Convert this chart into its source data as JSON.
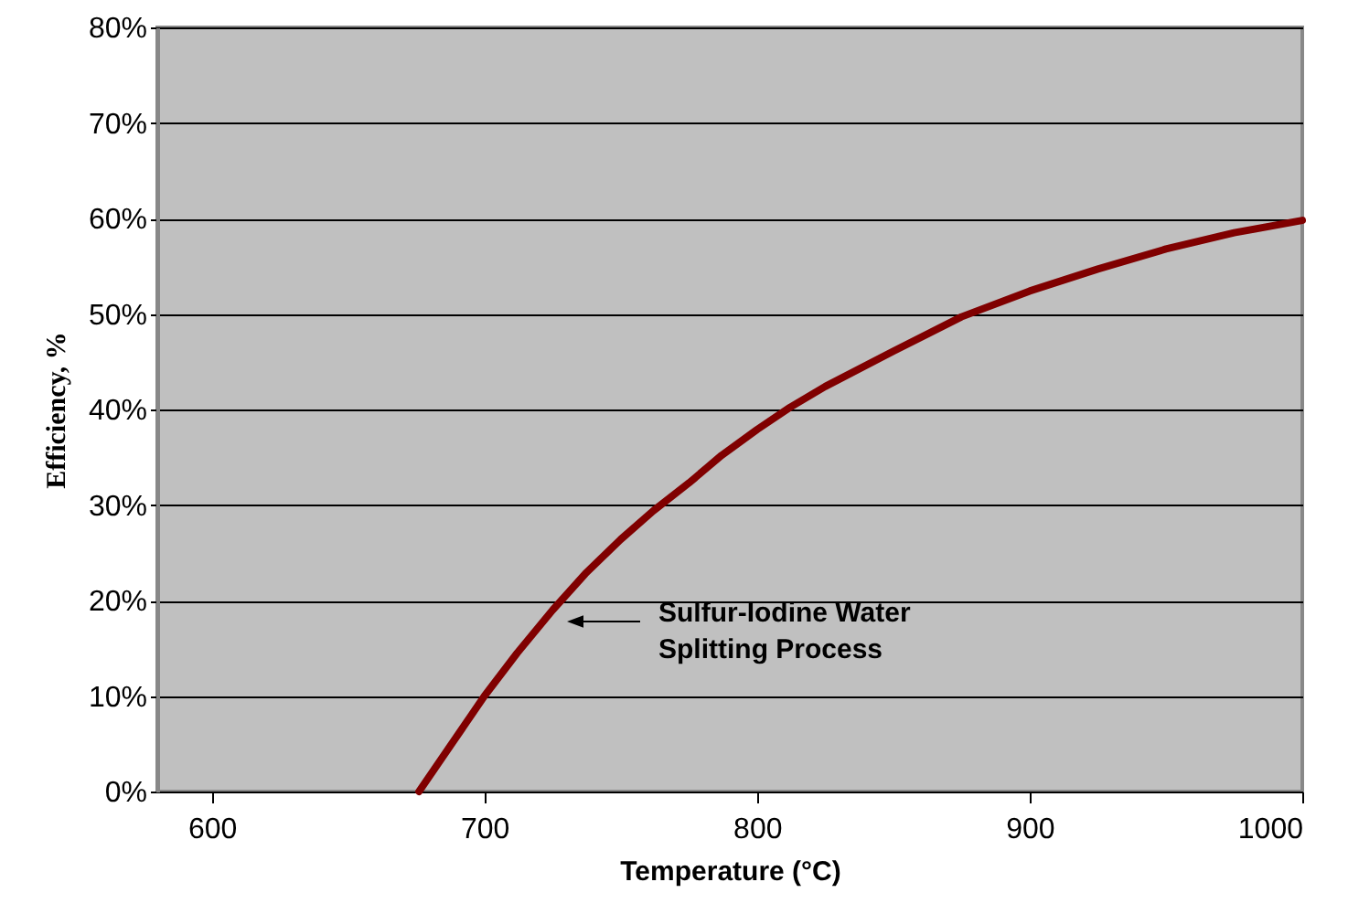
{
  "chart_data": {
    "type": "line",
    "xlabel": "Temperature (°C)",
    "ylabel": "Efficiency, %",
    "x": [
      676,
      688,
      700,
      712,
      725,
      737,
      750,
      762,
      775,
      787,
      800,
      812,
      825,
      850,
      875,
      900,
      925,
      950,
      975,
      1000
    ],
    "series": [
      {
        "color": "#800000",
        "values": [
          0,
          5,
          10,
          14.5,
          19,
          22.8,
          26.4,
          29.4,
          32.3,
          35.2,
          37.9,
          40.2,
          42.4,
          46.1,
          49.7,
          52.4,
          54.7,
          56.8,
          58.5,
          59.8
        ]
      }
    ],
    "xlim": [
      580,
      1000
    ],
    "xticks": [
      600,
      700,
      800,
      900,
      1000
    ],
    "ylim": [
      0,
      80
    ],
    "yticks": [
      {
        "value": 0,
        "label": "0%"
      },
      {
        "value": 10,
        "label": "10%"
      },
      {
        "value": 20,
        "label": "20%"
      },
      {
        "value": 30,
        "label": "30%"
      },
      {
        "value": 40,
        "label": "40%"
      },
      {
        "value": 50,
        "label": "50%"
      },
      {
        "value": 60,
        "label": "60%"
      },
      {
        "value": 70,
        "label": "70%"
      },
      {
        "value": 80,
        "label": "80%"
      }
    ],
    "grid": "y",
    "marker": "none",
    "line_style": "solid",
    "annotations": [
      "Sulfur-Iodine Water\nSplitting Process"
    ]
  }
}
